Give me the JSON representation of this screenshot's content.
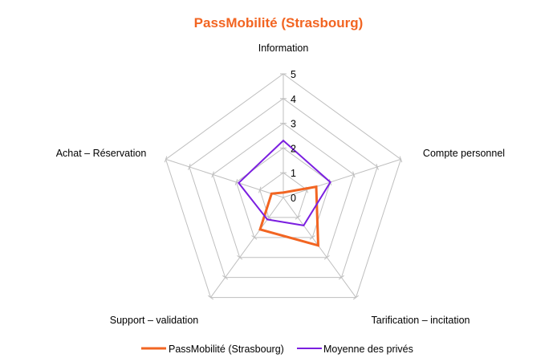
{
  "chart_data": {
    "type": "radar",
    "title": "PassMobilité (Strasbourg)",
    "axes": [
      "Information",
      "Compte personnel",
      "Tarification – incitation",
      "Support – validation",
      "Achat – Réservation"
    ],
    "tick_labels": [
      "0",
      "1",
      "2",
      "3",
      "4",
      "5"
    ],
    "rlim": [
      0,
      5
    ],
    "grid": true,
    "legend_position": "bottom",
    "series": [
      {
        "name": "PassMobilité (Strasbourg)",
        "values": [
          0.2,
          1.4,
          2.4,
          1.6,
          0.5
        ]
      },
      {
        "name": "Moyenne des privés",
        "values": [
          2.3,
          2.0,
          1.4,
          1.1,
          1.9
        ]
      }
    ],
    "colors": {
      "title": "#F26522",
      "series": [
        "#F26522",
        "#7B1FE0"
      ],
      "grid": "#BFBFBF"
    }
  }
}
